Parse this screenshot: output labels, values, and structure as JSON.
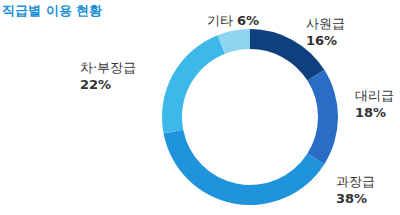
{
  "chart_data": {
    "type": "pie",
    "title": "직급별 이용 현황",
    "categories": [
      "사원급",
      "대리급",
      "과장급",
      "차·부장급",
      "기타"
    ],
    "values": [
      16,
      18,
      38,
      22,
      6
    ],
    "value_labels": [
      "16%",
      "18%",
      "38%",
      "22%",
      "6%"
    ],
    "colors": [
      "#0f3f7d",
      "#2a6cc6",
      "#1f93dc",
      "#3cb9e9",
      "#8dd5f1"
    ],
    "data_labels": true
  }
}
